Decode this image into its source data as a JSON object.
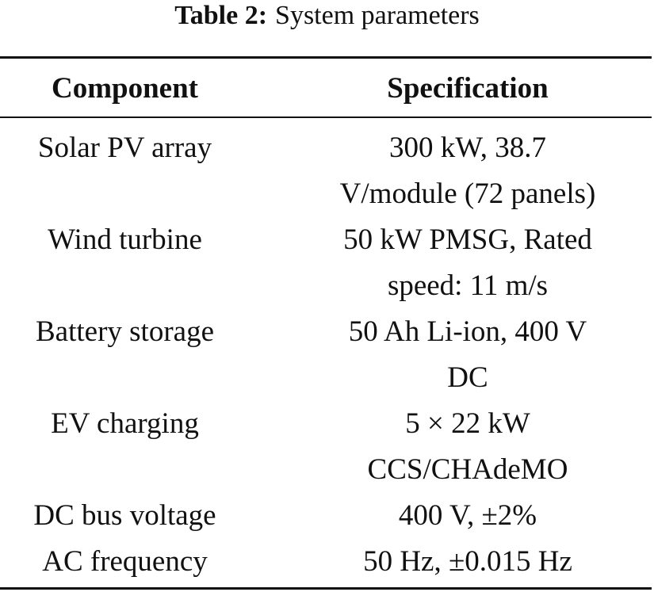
{
  "caption": {
    "label": "Table 2:",
    "title": "System parameters"
  },
  "table": {
    "header": [
      "Component",
      "Specification"
    ],
    "rows": [
      [
        "Solar PV array",
        [
          "300 kW, 38.7",
          "V/module (72 panels)"
        ]
      ],
      [
        "Wind turbine",
        [
          "50 kW PMSG, Rated",
          "speed: 11 m/s"
        ]
      ],
      [
        "Battery storage",
        [
          "50 Ah Li-ion, 400 V",
          "DC"
        ]
      ],
      [
        "EV charging",
        [
          "5 × 22 kW",
          "CCS/CHAdeMO"
        ]
      ],
      [
        "DC bus voltage",
        [
          "400 V, ±2%"
        ]
      ],
      [
        "AC frequency",
        [
          "50 Hz, ±0.015 Hz"
        ]
      ]
    ]
  }
}
